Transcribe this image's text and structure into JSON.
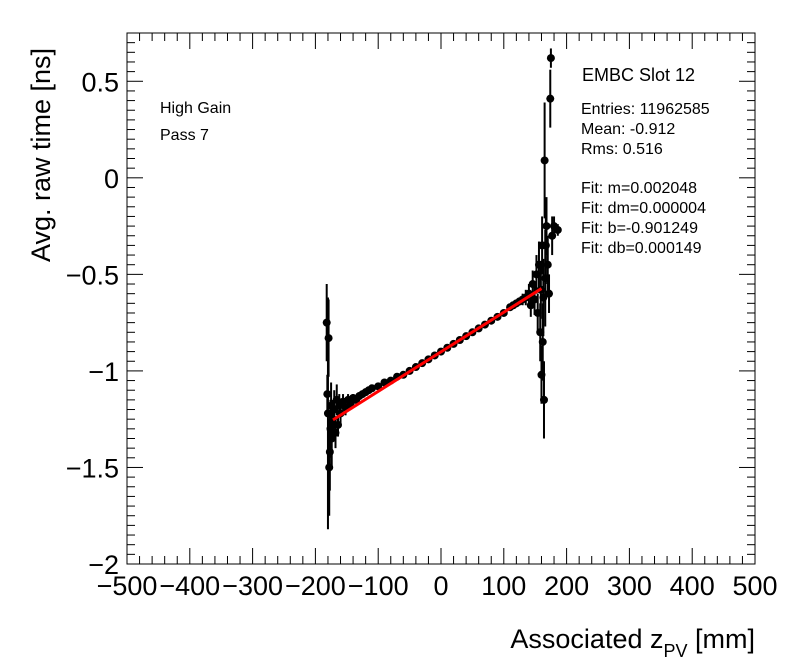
{
  "chart_data": {
    "type": "scatter",
    "title": "",
    "xlabel": "Associated z",
    "xlabel_sub": "PV",
    "xlabel_unit": " [mm]",
    "ylabel": "Avg. raw time [ns]",
    "xlim": [
      -500,
      500
    ],
    "ylim": [
      -2.0,
      0.75
    ],
    "xticks": [
      {
        "value": -500,
        "label": "−500"
      },
      {
        "value": -400,
        "label": "−400"
      },
      {
        "value": -300,
        "label": "−300"
      },
      {
        "value": -200,
        "label": "−200"
      },
      {
        "value": -100,
        "label": "−100"
      },
      {
        "value": 0,
        "label": "0"
      },
      {
        "value": 100,
        "label": "100"
      },
      {
        "value": 200,
        "label": "200"
      },
      {
        "value": 300,
        "label": "300"
      },
      {
        "value": 400,
        "label": "400"
      },
      {
        "value": 500,
        "label": "500"
      }
    ],
    "yticks": [
      {
        "value": 0.5,
        "label": "0.5"
      },
      {
        "value": 0,
        "label": "0"
      },
      {
        "value": -0.5,
        "label": "−0.5"
      },
      {
        "value": -1,
        "label": "−1"
      },
      {
        "value": -1.5,
        "label": "−1.5"
      },
      {
        "value": -2,
        "label": "−2"
      }
    ],
    "annotations_left": [
      "High Gain",
      "Pass 7"
    ],
    "legend": {
      "title": "EMBC Slot 12",
      "stats": [
        "Entries: 11962585",
        "Mean: -0.912",
        "Rms: 0.516"
      ],
      "fit": [
        "Fit: m=0.002048",
        "Fit: dm=0.000004",
        "Fit: b=-0.901249",
        "Fit: db=0.000149"
      ]
    },
    "fit_line": {
      "m": 0.002048,
      "b": -0.901249,
      "x_range": [
        -172,
        160
      ],
      "color": "#ff0000"
    },
    "series": [
      {
        "name": "EMBC Slot 12",
        "color": "#000000",
        "points": [
          {
            "x": -182,
            "y": -0.75,
            "err": 0.2
          },
          {
            "x": -181,
            "y": -1.12,
            "err": 0.1
          },
          {
            "x": -180,
            "y": -1.22,
            "err": 0.6
          },
          {
            "x": -179,
            "y": -0.83,
            "err": 0.2
          },
          {
            "x": -178,
            "y": -1.5,
            "err": 0.25
          },
          {
            "x": -177,
            "y": -1.42,
            "err": 0.2
          },
          {
            "x": -176,
            "y": -1.3,
            "err": 0.15
          },
          {
            "x": -175,
            "y": -1.18,
            "err": 0.12
          },
          {
            "x": -174,
            "y": -1.35,
            "err": 0.15
          },
          {
            "x": -172,
            "y": -1.25,
            "err": 0.1
          },
          {
            "x": -170,
            "y": -1.2,
            "err": 0.1
          },
          {
            "x": -168,
            "y": -1.32,
            "err": 0.08
          },
          {
            "x": -166,
            "y": -1.15,
            "err": 0.08
          },
          {
            "x": -164,
            "y": -1.28,
            "err": 0.06
          },
          {
            "x": -162,
            "y": -1.18,
            "err": 0.06
          },
          {
            "x": -160,
            "y": -1.22,
            "err": 0.05
          },
          {
            "x": -156,
            "y": -1.16,
            "err": 0.04
          },
          {
            "x": -152,
            "y": -1.19,
            "err": 0.04
          },
          {
            "x": -148,
            "y": -1.15,
            "err": 0.03
          },
          {
            "x": -144,
            "y": -1.17,
            "err": 0.03
          },
          {
            "x": -140,
            "y": -1.14,
            "err": 0.02
          },
          {
            "x": -135,
            "y": -1.15,
            "err": 0.02
          },
          {
            "x": -130,
            "y": -1.13,
            "err": 0.02
          },
          {
            "x": -125,
            "y": -1.12,
            "err": 0.015
          },
          {
            "x": -120,
            "y": -1.11,
            "err": 0.01
          },
          {
            "x": -115,
            "y": -1.1,
            "err": 0.01
          },
          {
            "x": -110,
            "y": -1.09,
            "err": 0.01
          },
          {
            "x": -100,
            "y": -1.08,
            "err": 0.01
          },
          {
            "x": -90,
            "y": -1.06,
            "err": 0.01
          },
          {
            "x": -80,
            "y": -1.05,
            "err": 0.01
          },
          {
            "x": -70,
            "y": -1.03,
            "err": 0.01
          },
          {
            "x": -60,
            "y": -1.02,
            "err": 0.01
          },
          {
            "x": -50,
            "y": -1.0,
            "err": 0.01
          },
          {
            "x": -40,
            "y": -0.98,
            "err": 0.01
          },
          {
            "x": -30,
            "y": -0.96,
            "err": 0.01
          },
          {
            "x": -20,
            "y": -0.94,
            "err": 0.01
          },
          {
            "x": -10,
            "y": -0.92,
            "err": 0.01
          },
          {
            "x": 0,
            "y": -0.9,
            "err": 0.01
          },
          {
            "x": 10,
            "y": -0.88,
            "err": 0.01
          },
          {
            "x": 20,
            "y": -0.86,
            "err": 0.01
          },
          {
            "x": 30,
            "y": -0.84,
            "err": 0.01
          },
          {
            "x": 40,
            "y": -0.82,
            "err": 0.01
          },
          {
            "x": 50,
            "y": -0.8,
            "err": 0.01
          },
          {
            "x": 60,
            "y": -0.78,
            "err": 0.01
          },
          {
            "x": 70,
            "y": -0.76,
            "err": 0.01
          },
          {
            "x": 80,
            "y": -0.74,
            "err": 0.01
          },
          {
            "x": 90,
            "y": -0.72,
            "err": 0.01
          },
          {
            "x": 100,
            "y": -0.7,
            "err": 0.01
          },
          {
            "x": 110,
            "y": -0.67,
            "err": 0.015
          },
          {
            "x": 115,
            "y": -0.66,
            "err": 0.015
          },
          {
            "x": 120,
            "y": -0.65,
            "err": 0.02
          },
          {
            "x": 125,
            "y": -0.64,
            "err": 0.02
          },
          {
            "x": 130,
            "y": -0.63,
            "err": 0.03
          },
          {
            "x": 135,
            "y": -0.62,
            "err": 0.04
          },
          {
            "x": 140,
            "y": -0.6,
            "err": 0.05
          },
          {
            "x": 143,
            "y": -0.66,
            "err": 0.06
          },
          {
            "x": 146,
            "y": -0.55,
            "err": 0.07
          },
          {
            "x": 149,
            "y": -0.63,
            "err": 0.08
          },
          {
            "x": 152,
            "y": -0.5,
            "err": 0.1
          },
          {
            "x": 154,
            "y": -0.7,
            "err": 0.1
          },
          {
            "x": 156,
            "y": -0.45,
            "err": 0.12
          },
          {
            "x": 158,
            "y": -0.8,
            "err": 0.15
          },
          {
            "x": 159,
            "y": -0.58,
            "err": 0.15
          },
          {
            "x": 160,
            "y": -1.02,
            "err": 0.15
          },
          {
            "x": 161,
            "y": -0.35,
            "err": 0.15
          },
          {
            "x": 162,
            "y": -0.85,
            "err": 0.2
          },
          {
            "x": 163,
            "y": -0.62,
            "err": 0.2
          },
          {
            "x": 164,
            "y": -1.15,
            "err": 0.2
          },
          {
            "x": 165,
            "y": 0.09,
            "err": 0.3
          },
          {
            "x": 166,
            "y": -0.52,
            "err": 0.25
          },
          {
            "x": 167,
            "y": -0.35,
            "err": 0.2
          },
          {
            "x": 168,
            "y": -0.25,
            "err": 0.15
          },
          {
            "x": 170,
            "y": -0.45,
            "err": 0.15
          },
          {
            "x": 172,
            "y": -0.6,
            "err": 0.1
          },
          {
            "x": 174,
            "y": 0.41,
            "err": 0.15
          },
          {
            "x": 175,
            "y": 0.62,
            "err": 0.05
          },
          {
            "x": 177,
            "y": -0.3,
            "err": 0.1
          },
          {
            "x": 180,
            "y": -0.25,
            "err": 0.05
          },
          {
            "x": 186,
            "y": -0.27,
            "err": 0.03
          }
        ]
      }
    ]
  }
}
